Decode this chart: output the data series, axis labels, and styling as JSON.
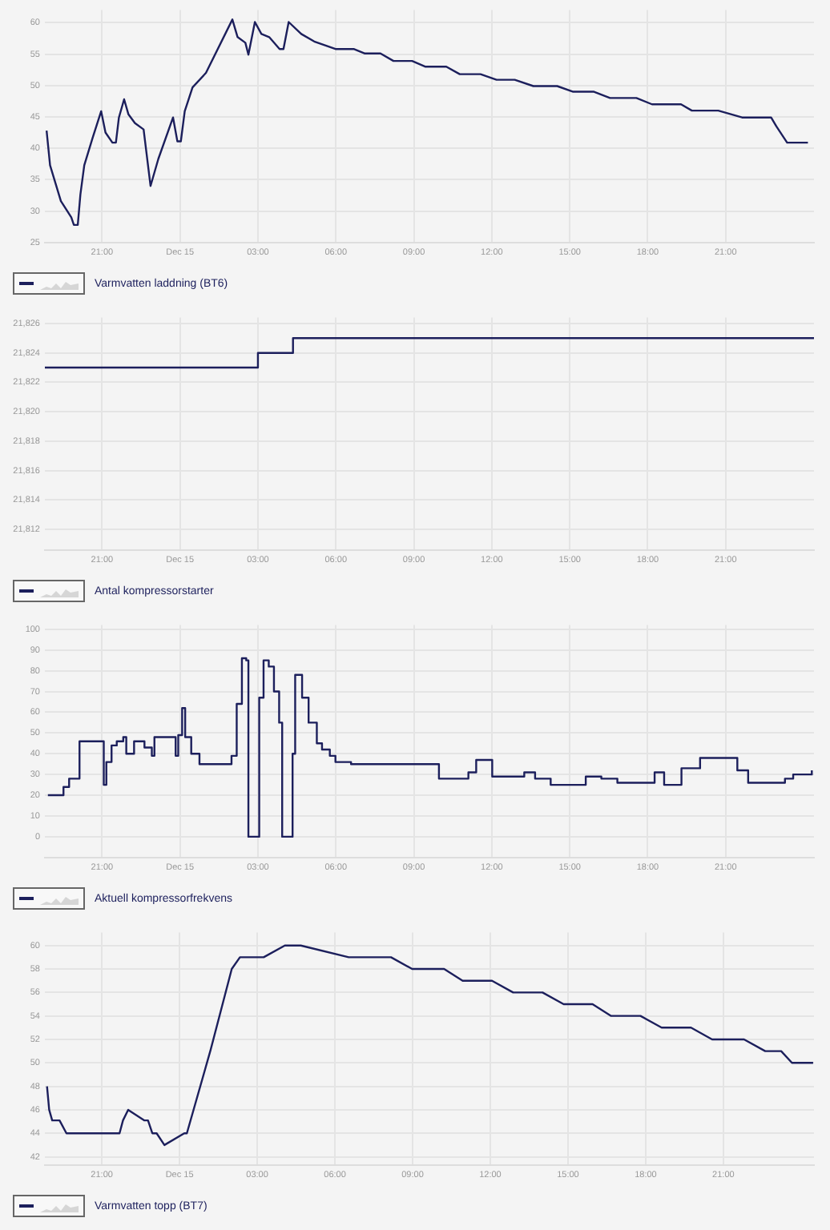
{
  "chart_data": [
    {
      "type": "line",
      "xlim": [
        "--12-14T18:48",
        "--12-16T00:24"
      ],
      "xticks": [
        {
          "value": "--12-14T21:00",
          "label": "21:00"
        },
        {
          "value": "--12-15T00:00",
          "label": "Dec 15"
        },
        {
          "value": "--12-15T03:00",
          "label": "03:00"
        },
        {
          "value": "--12-15T06:00",
          "label": "06:00"
        },
        {
          "value": "--12-15T09:00",
          "label": "09:00"
        },
        {
          "value": "--12-15T12:00",
          "label": "12:00"
        },
        {
          "value": "--12-15T15:00",
          "label": "15:00"
        },
        {
          "value": "--12-15T18:00",
          "label": "18:00"
        },
        {
          "value": "--12-15T21:00",
          "label": "21:00"
        }
      ],
      "ylim": [
        25,
        62
      ],
      "yticks": [
        25,
        30,
        35,
        40,
        45,
        50,
        55,
        60
      ],
      "grid": true,
      "legend": "bottom",
      "x": [
        "--12-14T18:52",
        "--12-14T19:00",
        "--12-14T19:25",
        "--12-14T19:49",
        "--12-14T19:55",
        "--12-14T20:04",
        "--12-14T20:10",
        "--12-14T20:19",
        "--12-14T20:38",
        "--12-14T20:58",
        "--12-14T21:08",
        "--12-14T21:24",
        "--12-14T21:32",
        "--12-14T21:39",
        "--12-14T21:51",
        "--12-14T22:01",
        "--12-14T22:16",
        "--12-14T22:36",
        "--12-14T22:52",
        "--12-14T23:10",
        "--12-14T23:44",
        "--12-14T23:54",
        "--12-15T00:02",
        "--12-15T00:11",
        "--12-15T00:29",
        "--12-15T01:00",
        "--12-15T02:01",
        "--12-15T02:13",
        "--12-15T02:31",
        "--12-15T02:38",
        "--12-15T02:53",
        "--12-15T03:08",
        "--12-15T03:26",
        "--12-15T03:50",
        "--12-15T03:59",
        "--12-15T04:11",
        "--12-15T04:40",
        "--12-15T05:10",
        "--12-15T05:59",
        "--12-15T06:41",
        "--12-15T07:06",
        "--12-15T07:43",
        "--12-15T08:13",
        "--12-15T08:56",
        "--12-15T09:26",
        "--12-15T10:15",
        "--12-15T10:46",
        "--12-15T11:34",
        "--12-15T12:11",
        "--12-15T12:53",
        "--12-15T13:36",
        "--12-15T14:31",
        "--12-15T15:08",
        "--12-15T15:56",
        "--12-15T16:33",
        "--12-15T17:34",
        "--12-15T18:10",
        "--12-15T19:17",
        "--12-15T19:42",
        "--12-15T20:43",
        "--12-15T21:38",
        "--12-15T22:45",
        "--12-15T22:57",
        "--12-15T23:22",
        "--12-16T00:10"
      ],
      "series": [
        {
          "name": "Varmvatten laddning (BT6)",
          "color": "#1c1f5c",
          "values": [
            42.8,
            37.3,
            31.6,
            29.0,
            27.8,
            27.8,
            32.6,
            37.3,
            41.6,
            45.9,
            42.5,
            40.9,
            40.9,
            44.9,
            47.8,
            45.4,
            44.0,
            43.0,
            34.0,
            38.3,
            44.9,
            41.1,
            41.1,
            45.9,
            49.7,
            52.0,
            60.5,
            57.7,
            56.8,
            54.9,
            60.1,
            58.2,
            57.7,
            55.8,
            55.8,
            60.1,
            58.2,
            57.0,
            55.8,
            55.8,
            55.1,
            55.1,
            53.9,
            53.9,
            53.0,
            53.0,
            51.8,
            51.8,
            50.9,
            50.9,
            49.9,
            49.9,
            49.0,
            49.0,
            48.0,
            48.0,
            47.0,
            47.0,
            46.0,
            46.0,
            44.9,
            44.9,
            43.5,
            40.9,
            40.9
          ]
        }
      ]
    },
    {
      "type": "step",
      "xlim": [
        "--12-14T18:48",
        "--12-16T00:24"
      ],
      "xticks": [
        {
          "value": "--12-14T21:00",
          "label": "21:00"
        },
        {
          "value": "--12-15T00:00",
          "label": "Dec 15"
        },
        {
          "value": "--12-15T03:00",
          "label": "03:00"
        },
        {
          "value": "--12-15T06:00",
          "label": "06:00"
        },
        {
          "value": "--12-15T09:00",
          "label": "09:00"
        },
        {
          "value": "--12-15T12:00",
          "label": "12:00"
        },
        {
          "value": "--12-15T15:00",
          "label": "15:00"
        },
        {
          "value": "--12-15T18:00",
          "label": "18:00"
        },
        {
          "value": "--12-15T21:00",
          "label": "21:00"
        }
      ],
      "ylim": [
        21810.6,
        21826.4
      ],
      "yticks": [
        {
          "value": 21812,
          "label": "21,812"
        },
        {
          "value": 21814,
          "label": "21,814"
        },
        {
          "value": 21816,
          "label": "21,816"
        },
        {
          "value": 21818,
          "label": "21,818"
        },
        {
          "value": 21820,
          "label": "21,820"
        },
        {
          "value": 21822,
          "label": "21,822"
        },
        {
          "value": 21824,
          "label": "21,824"
        },
        {
          "value": 21826,
          "label": "21,826"
        }
      ],
      "grid": true,
      "legend": "bottom",
      "x": [
        "--12-14T18:48",
        "--12-15T03:00",
        "--12-15T04:21",
        "--12-16T00:24"
      ],
      "series": [
        {
          "name": "Antal kompressorstarter",
          "color": "#1c1f5c",
          "values": [
            21823,
            21824,
            21825,
            21825
          ]
        }
      ]
    },
    {
      "type": "step",
      "xlim": [
        "--12-14T18:48",
        "--12-16T00:24"
      ],
      "xticks": [
        {
          "value": "--12-14T21:00",
          "label": "21:00"
        },
        {
          "value": "--12-15T00:00",
          "label": "Dec 15"
        },
        {
          "value": "--12-15T03:00",
          "label": "03:00"
        },
        {
          "value": "--12-15T06:00",
          "label": "06:00"
        },
        {
          "value": "--12-15T09:00",
          "label": "09:00"
        },
        {
          "value": "--12-15T12:00",
          "label": "12:00"
        },
        {
          "value": "--12-15T15:00",
          "label": "15:00"
        },
        {
          "value": "--12-15T18:00",
          "label": "18:00"
        },
        {
          "value": "--12-15T21:00",
          "label": "21:00"
        }
      ],
      "ylim": [
        -10,
        102
      ],
      "yticks": [
        0,
        10,
        20,
        30,
        40,
        50,
        60,
        70,
        80,
        90,
        100
      ],
      "grid": true,
      "legend": "bottom",
      "x": [
        "--12-14T18:55",
        "--12-14T19:31",
        "--12-14T19:44",
        "--12-14T19:56",
        "--12-14T20:08",
        "--12-14T21:04",
        "--12-14T21:10",
        "--12-14T21:22",
        "--12-14T21:34",
        "--12-14T21:49",
        "--12-14T21:56",
        "--12-14T22:14",
        "--12-14T22:38",
        "--12-14T22:55",
        "--12-14T23:01",
        "--12-14T23:50",
        "--12-14T23:56",
        "--12-15T00:05",
        "--12-15T00:12",
        "--12-15T00:26",
        "--12-15T00:45",
        "--12-15T01:59",
        "--12-15T02:11",
        "--12-15T02:23",
        "--12-15T02:33",
        "--12-15T02:38",
        "--12-15T03:03",
        "--12-15T03:13",
        "--12-15T03:25",
        "--12-15T03:37",
        "--12-15T03:49",
        "--12-15T03:56",
        "--12-15T04:20",
        "--12-15T04:26",
        "--12-15T04:42",
        "--12-15T04:57",
        "--12-15T05:16",
        "--12-15T05:28",
        "--12-15T05:46",
        "--12-15T05:59",
        "--12-15T06:35",
        "--12-15T09:58",
        "--12-15T11:06",
        "--12-15T11:24",
        "--12-15T12:01",
        "--12-15T13:15",
        "--12-15T13:40",
        "--12-15T14:16",
        "--12-15T15:37",
        "--12-15T16:13",
        "--12-15T16:50",
        "--12-15T18:16",
        "--12-15T18:38",
        "--12-15T19:18",
        "--12-15T20:01",
        "--12-15T21:27",
        "--12-15T21:52",
        "--12-15T23:17",
        "--12-15T23:36",
        "--12-16T00:19"
      ],
      "series": [
        {
          "name": "Aktuell kompressorfrekvens",
          "color": "#1c1f5c",
          "values": [
            20,
            24,
            28,
            28,
            46,
            25,
            36,
            44,
            46,
            48,
            40,
            46,
            43,
            39,
            48,
            39,
            49,
            62,
            48,
            40,
            35,
            39,
            64,
            86,
            85,
            0,
            67,
            85,
            82,
            70,
            55,
            0,
            40,
            78,
            67,
            55,
            45,
            42,
            39,
            36,
            35,
            28,
            31,
            37,
            29,
            31,
            28,
            25,
            29,
            28,
            26,
            31,
            25,
            33,
            38,
            32,
            26,
            28,
            30,
            32
          ]
        }
      ]
    },
    {
      "type": "line",
      "xlim": [
        "--12-14T18:48",
        "--12-16T00:30"
      ],
      "xticks": [
        {
          "value": "--12-14T21:00",
          "label": "21:00"
        },
        {
          "value": "--12-15T00:00",
          "label": "Dec 15"
        },
        {
          "value": "--12-15T03:00",
          "label": "03:00"
        },
        {
          "value": "--12-15T06:00",
          "label": "06:00"
        },
        {
          "value": "--12-15T09:00",
          "label": "09:00"
        },
        {
          "value": "--12-15T12:00",
          "label": "12:00"
        },
        {
          "value": "--12-15T15:00",
          "label": "15:00"
        },
        {
          "value": "--12-15T18:00",
          "label": "18:00"
        },
        {
          "value": "--12-15T21:00",
          "label": "21:00"
        }
      ],
      "ylim": [
        41.3,
        61.1
      ],
      "yticks": [
        42,
        44,
        46,
        48,
        50,
        52,
        54,
        56,
        58,
        60
      ],
      "grid": true,
      "legend": "bottom",
      "x": [
        "--12-14T18:53",
        "--12-14T18:58",
        "--12-14T19:05",
        "--12-14T19:22",
        "--12-14T19:38",
        "--12-14T21:41",
        "--12-14T21:49",
        "--12-14T22:01",
        "--12-14T22:38",
        "--12-14T22:47",
        "--12-14T22:57",
        "--12-14T23:07",
        "--12-14T23:25",
        "--12-15T00:11",
        "--12-15T00:17",
        "--12-15T01:12",
        "--12-15T02:01",
        "--12-15T02:20",
        "--12-15T03:15",
        "--12-15T04:04",
        "--12-15T04:41",
        "--12-15T06:32",
        "--12-15T08:10",
        "--12-15T08:59",
        "--12-15T10:13",
        "--12-15T10:56",
        "--12-15T12:04",
        "--12-15T12:53",
        "--12-15T14:01",
        "--12-15T14:50",
        "--12-15T15:57",
        "--12-15T16:40",
        "--12-15T17:48",
        "--12-15T18:37",
        "--12-15T19:45",
        "--12-15T20:34",
        "--12-15T21:48",
        "--12-15T22:37",
        "--12-15T23:14",
        "--12-15T23:39",
        "--12-16T00:28"
      ],
      "series": [
        {
          "name": "Varmvatten topp (BT7)",
          "color": "#1c1f5c",
          "values": [
            48.0,
            46.0,
            45.1,
            45.1,
            44.0,
            44.0,
            45.1,
            46.0,
            45.1,
            45.1,
            44.0,
            44.0,
            43.0,
            44.0,
            44.0,
            51.1,
            58.0,
            59.0,
            59.0,
            60.0,
            60.0,
            59.0,
            59.0,
            58.0,
            58.0,
            57.0,
            57.0,
            56.0,
            56.0,
            55.0,
            55.0,
            54.0,
            54.0,
            53.0,
            53.0,
            52.0,
            52.0,
            51.0,
            51.0,
            50.0,
            50.0
          ]
        }
      ]
    }
  ]
}
